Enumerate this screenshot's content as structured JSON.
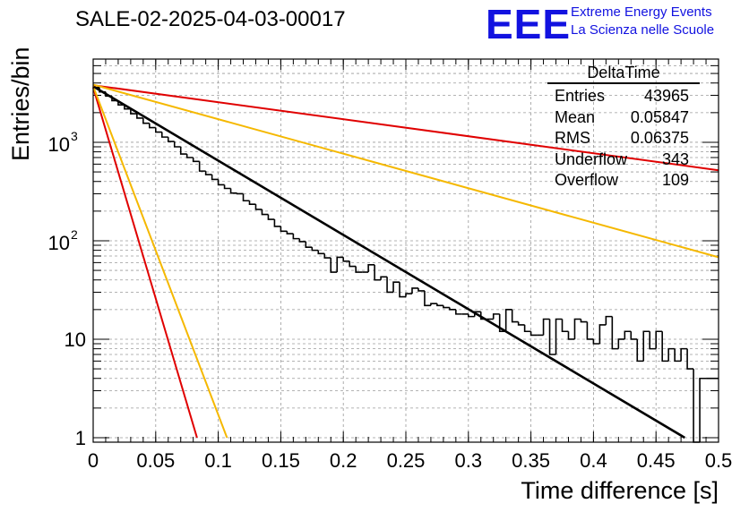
{
  "header": {
    "title": "SALE-02-2025-04-03-00017",
    "logo_mark": "EEE",
    "logo_line1": "Extreme Energy Events",
    "logo_line2": "La Scienza nelle Scuole"
  },
  "stats": {
    "title": "DeltaTime",
    "rows": [
      {
        "label": "Entries",
        "value": "43965"
      },
      {
        "label": "Mean",
        "value": "0.05847"
      },
      {
        "label": "RMS",
        "value": "0.06375"
      },
      {
        "label": "Underflow",
        "value": "343"
      },
      {
        "label": "Overflow",
        "value": "109"
      }
    ]
  },
  "colors": {
    "histogram": "#000000",
    "fit": "#000000",
    "red_lines": "#e00000",
    "yellow_lines": "#f5b800",
    "grid": "#9a9a9a",
    "logo": "#1212e0"
  },
  "chart_data": {
    "type": "line",
    "xlabel": "Time difference [s]",
    "ylabel": "Entries/bin",
    "xlim": [
      0,
      0.5
    ],
    "ylim": [
      0.9,
      7000
    ],
    "yscale": "log",
    "grid": true,
    "xticks": [
      "0",
      "0.05",
      "0.1",
      "0.15",
      "0.2",
      "0.25",
      "0.3",
      "0.35",
      "0.4",
      "0.45",
      "0.5"
    ],
    "yticks": [
      "1",
      "10",
      "10^2",
      "10^3"
    ],
    "histogram": {
      "bin_width": 0.005,
      "values": [
        3600,
        3250,
        2950,
        2650,
        2400,
        2180,
        1950,
        1760,
        1560,
        1410,
        1270,
        1130,
        1020,
        900,
        760,
        700,
        640,
        510,
        470,
        420,
        370,
        340,
        305,
        300,
        255,
        235,
        208,
        185,
        165,
        140,
        125,
        118,
        105,
        98,
        86,
        80,
        74,
        67,
        48,
        68,
        62,
        55,
        48,
        48,
        57,
        40,
        43,
        30,
        38,
        27,
        29,
        33,
        31,
        22,
        23,
        22,
        21,
        20,
        18,
        18,
        17,
        19,
        16,
        16,
        18,
        12,
        20,
        15,
        14,
        12,
        11,
        11,
        16,
        7,
        16,
        12,
        10,
        16,
        15,
        10,
        9,
        14,
        17,
        8,
        10,
        12,
        10,
        6,
        12,
        8,
        12,
        6,
        8,
        6,
        8,
        5,
        0.1,
        4,
        4,
        4
      ]
    },
    "fits": [
      {
        "color": "black",
        "y0": 3700,
        "y_end": 1,
        "x_end": 0.473
      },
      {
        "color": "red",
        "y0": 3800,
        "y_end": 520,
        "x_end": 0.5
      },
      {
        "color": "yellow",
        "y0": 3850,
        "y_end": 68,
        "x_end": 0.5
      },
      {
        "color": "red",
        "y0": 3600,
        "y_end": 1,
        "x_end": 0.083
      },
      {
        "color": "yellow",
        "y0": 3700,
        "y_end": 1,
        "x_end": 0.107
      }
    ]
  }
}
